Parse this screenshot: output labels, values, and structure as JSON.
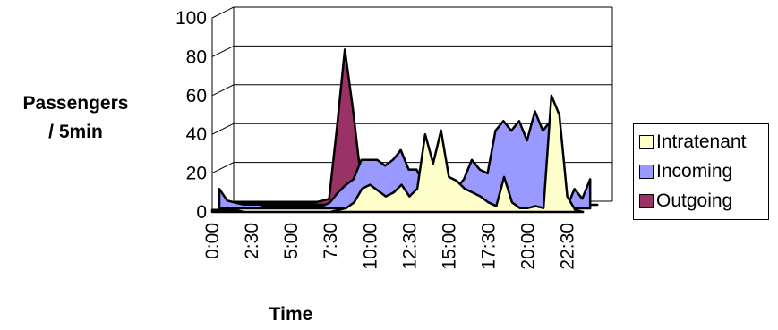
{
  "chart_data": {
    "type": "area",
    "title": "",
    "xlabel": "Time",
    "ylabel": "Passengers / 5min",
    "ylabel_lines": [
      "Passengers",
      "/ 5min"
    ],
    "ylim": [
      0,
      100
    ],
    "yticks": [
      0,
      20,
      40,
      60,
      80,
      100
    ],
    "xticks": [
      "0:00",
      "2:30",
      "5:00",
      "7:30",
      "10:00",
      "12:30",
      "15:00",
      "17:30",
      "20:00",
      "22:30"
    ],
    "grid": true,
    "legend_position": "right",
    "three_d": true,
    "x_hours": [
      0,
      0.5,
      1,
      1.5,
      2,
      2.5,
      3,
      3.5,
      4,
      4.5,
      5,
      5.5,
      6,
      6.5,
      7,
      7.5,
      8,
      8.5,
      9,
      9.5,
      10,
      10.5,
      11,
      11.5,
      12,
      12.5,
      13,
      13.5,
      14,
      14.5,
      15,
      15.5,
      16,
      16.5,
      17,
      17.5,
      18,
      18.5,
      19,
      19.5,
      20,
      20.5,
      21,
      21.5,
      22,
      22.5,
      23,
      23.5
    ],
    "series": [
      {
        "name": "Intratenant",
        "color": "#ffffcc",
        "values": [
          1,
          1,
          1,
          1,
          0,
          0,
          0,
          0,
          0,
          0,
          0,
          0,
          0,
          0,
          0,
          0,
          1,
          2,
          5,
          12,
          14,
          11,
          8,
          10,
          14,
          8,
          12,
          40,
          25,
          42,
          18,
          16,
          12,
          10,
          8,
          5,
          3,
          18,
          5,
          2,
          2,
          3,
          2,
          60,
          50,
          8,
          1,
          0
        ]
      },
      {
        "name": "Incoming",
        "color": "#9999ff",
        "values": [
          10,
          4,
          3,
          2,
          2,
          2,
          1,
          1,
          1,
          1,
          1,
          1,
          1,
          1,
          3,
          8,
          12,
          15,
          25,
          25,
          25,
          22,
          25,
          30,
          20,
          20,
          12,
          5,
          0,
          0,
          10,
          15,
          25,
          20,
          18,
          40,
          45,
          40,
          45,
          35,
          50,
          40,
          45,
          0,
          0,
          10,
          5,
          15
        ]
      },
      {
        "name": "Outgoing",
        "color": "#993366",
        "values": [
          1,
          1,
          1,
          1,
          1,
          1,
          1,
          1,
          1,
          1,
          1,
          1,
          2,
          3,
          40,
          80,
          50,
          15,
          5,
          3,
          2,
          3,
          28,
          15,
          2,
          1,
          1,
          0,
          0,
          0,
          0,
          0,
          0,
          0,
          0,
          0,
          0,
          0,
          0,
          0,
          0,
          0,
          0,
          0,
          0,
          0,
          0,
          0
        ]
      }
    ]
  }
}
